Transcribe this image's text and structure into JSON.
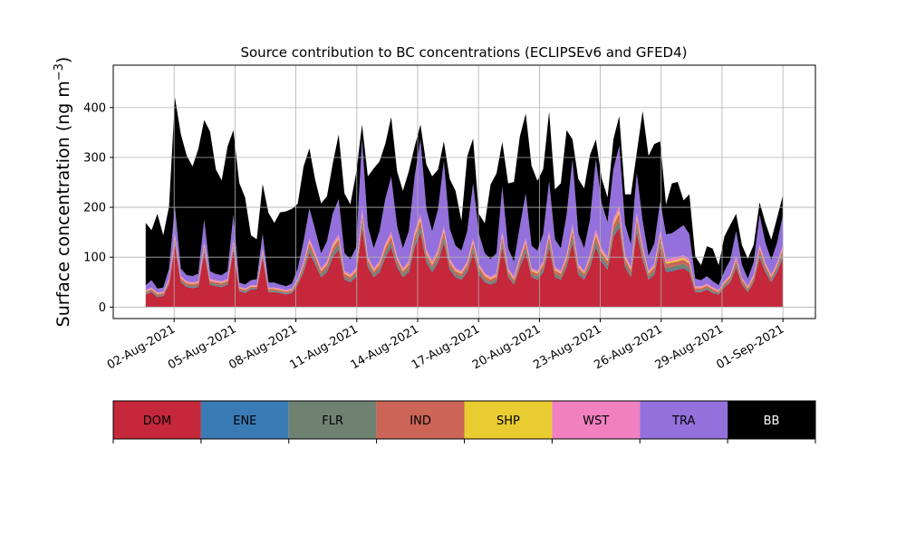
{
  "chart_data": {
    "type": "area",
    "title": "Source contribution to BC concentrations (ECLIPSEv6 and GFED4)",
    "ylabel": "Surface concentration (ng m",
    "ylabel_exp": "−3",
    "ylabel_end": ")",
    "xlabel": "",
    "x_start_day": 31.6,
    "x_end_day": 63.0,
    "ylim": [
      -23,
      485
    ],
    "xlim": [
      30.0,
      64.6
    ],
    "stacked": true,
    "grid": true,
    "yticks": [
      0,
      100,
      200,
      300,
      400
    ],
    "xticks": [
      {
        "day": 33,
        "label": "02-Aug-2021"
      },
      {
        "day": 36,
        "label": "05-Aug-2021"
      },
      {
        "day": 39,
        "label": "08-Aug-2021"
      },
      {
        "day": 42,
        "label": "11-Aug-2021"
      },
      {
        "day": 45,
        "label": "14-Aug-2021"
      },
      {
        "day": 48,
        "label": "17-Aug-2021"
      },
      {
        "day": 51,
        "label": "20-Aug-2021"
      },
      {
        "day": 54,
        "label": "23-Aug-2021"
      },
      {
        "day": 57,
        "label": "26-Aug-2021"
      },
      {
        "day": 60,
        "label": "29-Aug-2021"
      },
      {
        "day": 63,
        "label": "01-Sep-2021"
      }
    ],
    "legend_placement": "below",
    "series": [
      {
        "name": "DOM",
        "color": "#c4283a",
        "text_color": "#000000",
        "values": [
          25,
          30,
          20,
          22,
          45,
          125,
          50,
          40,
          38,
          40,
          110,
          45,
          42,
          40,
          45,
          115,
          32,
          28,
          35,
          35,
          100,
          30,
          30,
          28,
          25,
          28,
          45,
          70,
          110,
          85,
          60,
          70,
          100,
          115,
          55,
          50,
          60,
          160,
          80,
          60,
          70,
          100,
          120,
          80,
          60,
          70,
          120,
          150,
          90,
          70,
          90,
          130,
          75,
          60,
          55,
          70,
          110,
          65,
          50,
          45,
          50,
          120,
          60,
          45,
          80,
          110,
          60,
          55,
          70,
          120,
          60,
          55,
          80,
          130,
          65,
          55,
          80,
          120,
          90,
          75,
          140,
          160,
          80,
          60,
          150,
          95,
          55,
          65,
          120,
          70,
          72,
          75,
          78,
          70,
          30,
          30,
          35,
          28,
          25,
          40,
          50,
          80,
          45,
          30,
          50,
          100,
          70,
          50,
          70,
          100
        ]
      },
      {
        "name": "ENE",
        "color": "#3a7bb5",
        "text_color": "#000000",
        "values": [
          1,
          1,
          1,
          1,
          1,
          2,
          1,
          1,
          1,
          1,
          2,
          1,
          1,
          1,
          1,
          2,
          1,
          1,
          1,
          1,
          2,
          1,
          1,
          1,
          1,
          1,
          1,
          2,
          2,
          2,
          1,
          2,
          2,
          2,
          1,
          1,
          2,
          3,
          2,
          1,
          2,
          2,
          2,
          2,
          1,
          2,
          3,
          3,
          2,
          2,
          2,
          3,
          2,
          1,
          1,
          2,
          2,
          2,
          1,
          1,
          1,
          2,
          1,
          1,
          2,
          2,
          1,
          1,
          2,
          3,
          1,
          1,
          2,
          3,
          2,
          1,
          2,
          3,
          2,
          2,
          3,
          3,
          2,
          1,
          3,
          2,
          1,
          2,
          3,
          2,
          2,
          2,
          2,
          2,
          1,
          1,
          1,
          1,
          1,
          1,
          1,
          2,
          1,
          1,
          1,
          2,
          2,
          1,
          2,
          2
        ]
      },
      {
        "name": "FLR",
        "color": "#6f8272",
        "text_color": "#000000",
        "values": [
          2,
          2,
          2,
          2,
          3,
          5,
          3,
          3,
          3,
          3,
          5,
          3,
          3,
          3,
          3,
          5,
          2,
          2,
          2,
          2,
          4,
          2,
          2,
          2,
          2,
          2,
          3,
          6,
          8,
          7,
          5,
          6,
          8,
          9,
          5,
          4,
          5,
          10,
          6,
          5,
          6,
          8,
          9,
          6,
          5,
          6,
          9,
          10,
          7,
          6,
          7,
          9,
          6,
          5,
          5,
          6,
          8,
          6,
          5,
          4,
          5,
          9,
          5,
          4,
          6,
          8,
          5,
          5,
          6,
          9,
          6,
          5,
          7,
          10,
          6,
          5,
          7,
          10,
          8,
          7,
          10,
          12,
          7,
          6,
          11,
          8,
          5,
          6,
          9,
          7,
          7,
          7,
          7,
          7,
          3,
          3,
          3,
          3,
          2,
          3,
          4,
          6,
          4,
          3,
          4,
          7,
          5,
          4,
          5,
          7
        ]
      },
      {
        "name": "IND",
        "color": "#cc6458",
        "text_color": "#000000",
        "values": [
          3,
          3,
          3,
          3,
          4,
          6,
          4,
          4,
          4,
          4,
          6,
          4,
          4,
          4,
          4,
          6,
          3,
          3,
          3,
          3,
          5,
          3,
          3,
          3,
          3,
          3,
          4,
          7,
          9,
          8,
          6,
          7,
          9,
          10,
          6,
          5,
          6,
          11,
          7,
          6,
          7,
          9,
          10,
          7,
          6,
          7,
          10,
          11,
          8,
          7,
          8,
          10,
          7,
          6,
          6,
          7,
          9,
          7,
          6,
          5,
          6,
          10,
          6,
          5,
          7,
          9,
          6,
          6,
          7,
          10,
          7,
          6,
          8,
          11,
          7,
          6,
          8,
          11,
          9,
          8,
          11,
          13,
          8,
          7,
          12,
          9,
          6,
          7,
          10,
          8,
          8,
          8,
          8,
          8,
          4,
          4,
          4,
          4,
          3,
          4,
          5,
          7,
          5,
          4,
          5,
          8,
          6,
          5,
          6,
          8
        ]
      },
      {
        "name": "SHP",
        "color": "#e8cc30",
        "text_color": "#000000",
        "values": [
          1,
          1,
          1,
          1,
          1,
          2,
          1,
          1,
          1,
          1,
          2,
          1,
          1,
          1,
          1,
          2,
          1,
          1,
          1,
          1,
          2,
          1,
          1,
          1,
          1,
          1,
          1,
          2,
          3,
          2,
          2,
          2,
          3,
          3,
          2,
          2,
          2,
          4,
          2,
          2,
          2,
          3,
          3,
          2,
          2,
          2,
          3,
          4,
          3,
          2,
          3,
          3,
          2,
          2,
          2,
          2,
          3,
          2,
          2,
          2,
          2,
          3,
          2,
          2,
          2,
          3,
          2,
          2,
          2,
          3,
          2,
          2,
          3,
          4,
          2,
          2,
          3,
          4,
          3,
          3,
          4,
          5,
          3,
          2,
          4,
          3,
          2,
          2,
          3,
          3,
          3,
          3,
          3,
          3,
          1,
          1,
          1,
          1,
          1,
          1,
          2,
          2,
          1,
          1,
          2,
          3,
          2,
          2,
          2,
          3
        ]
      },
      {
        "name": "WST",
        "color": "#f080c0",
        "text_color": "#000000",
        "values": [
          2,
          2,
          2,
          2,
          3,
          5,
          3,
          3,
          3,
          3,
          5,
          3,
          3,
          3,
          3,
          5,
          2,
          2,
          2,
          2,
          4,
          2,
          2,
          2,
          2,
          2,
          3,
          5,
          6,
          5,
          4,
          5,
          6,
          7,
          4,
          4,
          4,
          8,
          5,
          4,
          5,
          6,
          7,
          5,
          4,
          5,
          7,
          8,
          6,
          5,
          6,
          7,
          5,
          4,
          4,
          5,
          6,
          5,
          4,
          4,
          4,
          7,
          4,
          4,
          5,
          6,
          4,
          4,
          5,
          7,
          5,
          4,
          5,
          8,
          5,
          4,
          5,
          8,
          6,
          5,
          8,
          10,
          6,
          5,
          9,
          6,
          4,
          5,
          7,
          6,
          6,
          6,
          6,
          6,
          3,
          3,
          3,
          3,
          2,
          3,
          3,
          5,
          3,
          3,
          3,
          5,
          4,
          3,
          4,
          5
        ]
      },
      {
        "name": "TRA",
        "color": "#9370db",
        "text_color": "#000000",
        "values": [
          10,
          15,
          8,
          8,
          20,
          55,
          15,
          12,
          12,
          15,
          45,
          15,
          12,
          12,
          15,
          50,
          8,
          8,
          10,
          12,
          30,
          10,
          10,
          8,
          8,
          10,
          20,
          40,
          60,
          45,
          30,
          40,
          60,
          70,
          35,
          30,
          40,
          140,
          60,
          40,
          60,
          90,
          110,
          60,
          40,
          60,
          110,
          150,
          80,
          60,
          80,
          130,
          60,
          45,
          40,
          60,
          110,
          60,
          40,
          35,
          40,
          90,
          40,
          30,
          60,
          90,
          45,
          40,
          55,
          100,
          55,
          45,
          80,
          130,
          60,
          45,
          70,
          140,
          90,
          70,
          100,
          120,
          60,
          45,
          80,
          50,
          30,
          40,
          60,
          50,
          50,
          55,
          60,
          50,
          15,
          12,
          15,
          12,
          10,
          20,
          30,
          50,
          25,
          15,
          25,
          60,
          40,
          30,
          40,
          60
        ]
      },
      {
        "name": "BB",
        "color": "#000000",
        "text_color": "#ffffff",
        "values": [
          125,
          100,
          150,
          105,
          125,
          220,
          270,
          240,
          220,
          250,
          200,
          280,
          210,
          190,
          250,
          170,
          200,
          175,
          90,
          80,
          100,
          140,
          120,
          145,
          150,
          150,
          130,
          150,
          120,
          100,
          100,
          90,
          100,
          130,
          120,
          110,
          150,
          30,
          100,
          160,
          140,
          110,
          120,
          110,
          115,
          120,
          60,
          30,
          90,
          110,
          80,
          40,
          100,
          110,
          60,
          150,
          90,
          40,
          60,
          150,
          160,
          90,
          130,
          160,
          180,
          160,
          160,
          140,
          130,
          140,
          100,
          130,
          170,
          40,
          110,
          120,
          130,
          40,
          50,
          50,
          60,
          60,
          60,
          100,
          40,
          220,
          200,
          200,
          120,
          60,
          100,
          95,
          50,
          80,
          45,
          30,
          60,
          65,
          40,
          70,
          70,
          35,
          40,
          40,
          35,
          25,
          40,
          40,
          50,
          40
        ]
      }
    ]
  }
}
